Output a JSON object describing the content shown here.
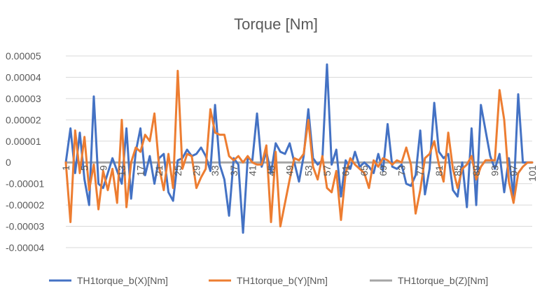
{
  "chart_data": {
    "type": "line",
    "title": "Torque [Nm]",
    "xlabel": "",
    "ylabel": "",
    "ylim": [
      -4e-05,
      5e-05
    ],
    "yticks": [
      5e-05,
      4e-05,
      3e-05,
      2e-05,
      1e-05,
      0,
      -1e-05,
      -2e-05,
      -3e-05,
      -4e-05
    ],
    "ytick_labels": [
      "0.00005",
      "0.00004",
      "0.00003",
      "0.00002",
      "0.00001",
      "0",
      "-0.00001",
      "-0.00002",
      "-0.00003",
      "-0.00004"
    ],
    "x": [
      1,
      2,
      3,
      4,
      5,
      6,
      7,
      8,
      9,
      10,
      11,
      12,
      13,
      14,
      15,
      16,
      17,
      18,
      19,
      20,
      21,
      22,
      23,
      24,
      25,
      26,
      27,
      28,
      29,
      30,
      31,
      32,
      33,
      34,
      35,
      36,
      37,
      38,
      39,
      40,
      41,
      42,
      43,
      44,
      45,
      46,
      47,
      48,
      49,
      50,
      51,
      52,
      53,
      54,
      55,
      56,
      57,
      58,
      59,
      60,
      61,
      62,
      63,
      64,
      65,
      66,
      67,
      68,
      69,
      70,
      71,
      72,
      73,
      74,
      75,
      76,
      77,
      78,
      79,
      80,
      81,
      82,
      83,
      84,
      85,
      86,
      87,
      88,
      89,
      90,
      91,
      92,
      93,
      94,
      95,
      96,
      97,
      98,
      99,
      100,
      101
    ],
    "xtick_labels": [
      "1",
      "5",
      "9",
      "13",
      "17",
      "21",
      "25",
      "29",
      "33",
      "37",
      "41",
      "45",
      "49",
      "53",
      "57",
      "61",
      "65",
      "69",
      "73",
      "77",
      "81",
      "85",
      "89",
      "93",
      "97",
      "101"
    ],
    "grid": true,
    "legend_position": "bottom",
    "colors": {
      "x": "#4472c4",
      "y": "#ed7d31",
      "z": "#a5a5a5",
      "grid": "#d9d9d9",
      "text": "#595959"
    },
    "series": [
      {
        "name": "TH1torque_b(X)[Nm]",
        "values": [
          0,
          1.6e-05,
          -5e-06,
          1.4e-05,
          -8e-06,
          -2e-05,
          3.1e-05,
          -1e-05,
          -1.2e-05,
          -5e-06,
          2e-06,
          -4e-06,
          -1e-05,
          1.6e-05,
          -1.7e-05,
          5e-06,
          1.6e-05,
          -6e-06,
          3e-06,
          -1e-05,
          2e-06,
          4e-06,
          -1.4e-05,
          -1.8e-05,
          1e-06,
          2e-06,
          6e-06,
          3e-06,
          4e-06,
          7e-06,
          3e-06,
          -4e-06,
          2.7e-05,
          -1e-06,
          -8e-06,
          -2.5e-05,
          2e-06,
          -1e-06,
          -3.3e-05,
          2e-06,
          1e-06,
          2.3e-05,
          -2e-06,
          5e-06,
          -5e-06,
          9e-06,
          5e-06,
          4e-06,
          9e-06,
          0,
          -9e-06,
          3e-06,
          2.5e-05,
          2e-06,
          -1e-06,
          1e-06,
          4.6e-05,
          -1e-06,
          6e-06,
          -1.6e-05,
          1e-06,
          -3e-06,
          5e-06,
          -2e-06,
          0,
          -2e-06,
          -5e-06,
          4e-06,
          -4e-06,
          1.8e-05,
          -2e-06,
          -3e-06,
          -1e-06,
          -1e-05,
          -1.1e-05,
          -6e-06,
          1.5e-05,
          -1.5e-05,
          -3e-06,
          2.8e-05,
          5e-06,
          2e-06,
          4e-06,
          -1.3e-05,
          -1.6e-05,
          0,
          -2.1e-05,
          1.6e-05,
          -2e-05,
          2.7e-05,
          1.5e-05,
          3e-06,
          -3e-06,
          4e-06,
          -1.4e-05,
          2e-06,
          -1.6e-05,
          3.2e-05,
          0,
          0,
          0
        ]
      },
      {
        "name": "TH1torque_b(Y)[Nm]",
        "values": [
          0,
          -2.8e-05,
          1.5e-05,
          -5e-06,
          1.2e-05,
          -1.3e-05,
          -1e-06,
          -2.2e-05,
          -4e-06,
          -1.3e-05,
          -3e-06,
          -1.9e-05,
          2e-05,
          -2.1e-05,
          0,
          7e-06,
          5e-06,
          1.3e-05,
          1e-05,
          2.3e-05,
          -2e-06,
          -1.3e-05,
          4e-06,
          -1.2e-05,
          4.3e-05,
          -3e-06,
          4e-06,
          3e-06,
          -1.2e-05,
          -7e-06,
          -3e-06,
          2.5e-05,
          1.4e-05,
          1.3e-05,
          1.3e-05,
          3e-06,
          1e-06,
          3e-06,
          0,
          3e-06,
          0,
          -1e-06,
          -1e-06,
          8e-06,
          -2.8e-05,
          5e-06,
          -3e-05,
          -1.9e-05,
          -8e-06,
          2e-06,
          1e-06,
          4e-06,
          2e-05,
          -2e-06,
          -8e-06,
          3e-06,
          -1.2e-05,
          -1.4e-05,
          -4e-06,
          -2.7e-05,
          -5e-06,
          2e-06,
          -1e-06,
          -3e-06,
          -5e-06,
          -1.2e-05,
          1e-06,
          -2e-06,
          2e-06,
          1e-06,
          -1e-06,
          1e-06,
          0,
          7e-06,
          -1e-06,
          -2.4e-05,
          -1.3e-05,
          2e-06,
          4e-06,
          1e-05,
          -1e-06,
          -9e-06,
          1.4e-05,
          -3e-06,
          -1.2e-05,
          -3e-06,
          -1e-06,
          3e-06,
          -8e-06,
          -2e-06,
          1e-06,
          1e-06,
          1e-06,
          3.4e-05,
          2e-05,
          -9e-06,
          -1.9e-05,
          -5e-06,
          -2e-06,
          0,
          0
        ]
      },
      {
        "name": "TH1torque_b(Z)[Nm]",
        "values": [
          0,
          0,
          0,
          0,
          0,
          0,
          0,
          0,
          0,
          0,
          0,
          0,
          0,
          0,
          0,
          0,
          0,
          0,
          0,
          0,
          0,
          0,
          0,
          0,
          0,
          0,
          0,
          0,
          0,
          0,
          0,
          0,
          0,
          0,
          0,
          0,
          0,
          0,
          0,
          0,
          0,
          0,
          0,
          0,
          0,
          0,
          0,
          0,
          0,
          0,
          0,
          0,
          0,
          0,
          0,
          0,
          0,
          0,
          0,
          0,
          0,
          0,
          0,
          0,
          0,
          0,
          0,
          0,
          0,
          0,
          0,
          0,
          0,
          0,
          0,
          0,
          0,
          0,
          0,
          0,
          0,
          0,
          0,
          0,
          0,
          0,
          0,
          0,
          0,
          0,
          0,
          0,
          0,
          0,
          0,
          0,
          0,
          0,
          0,
          0,
          0
        ]
      }
    ]
  }
}
